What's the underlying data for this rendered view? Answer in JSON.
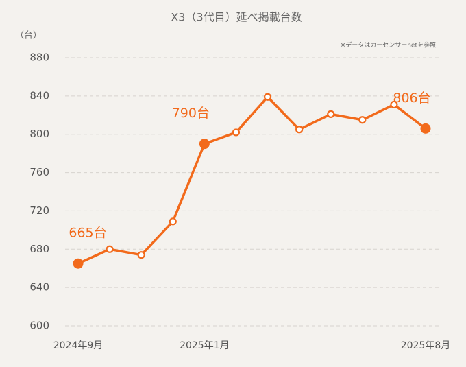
{
  "chart_data": {
    "type": "line",
    "title": "X3（3代目）延べ掲載台数",
    "y_unit": "（台）",
    "note": "※データはカーセンサーnetを参照",
    "categories": [
      "2024年9月",
      null,
      null,
      null,
      "2025年1月",
      null,
      null,
      null,
      null,
      null,
      null,
      "2025年8月"
    ],
    "values": [
      665,
      680,
      674,
      709,
      790,
      802,
      839,
      805,
      821,
      815,
      831,
      806
    ],
    "value_labels": [
      "665台",
      null,
      null,
      null,
      "790台",
      null,
      null,
      null,
      null,
      null,
      null,
      "806台"
    ],
    "color": "#f26a1b",
    "ylim": [
      600,
      880
    ],
    "yticks": [
      600,
      640,
      680,
      720,
      760,
      800,
      840,
      880
    ],
    "grid": true
  }
}
